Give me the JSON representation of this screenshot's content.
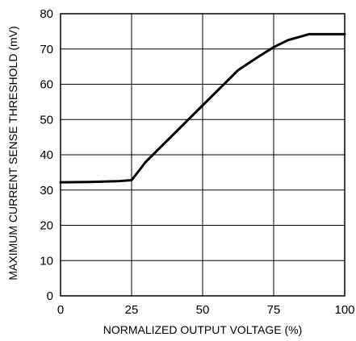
{
  "chart_data": {
    "type": "line",
    "title": "",
    "xlabel": "NORMALIZED OUTPUT VOLTAGE (%)",
    "ylabel": "MAXIMUM CURRENT SENSE THRESHOLD (mV)",
    "xlim": [
      0,
      100
    ],
    "ylim": [
      0,
      80
    ],
    "xticks": [
      "0",
      "25",
      "50",
      "75",
      "100"
    ],
    "yticks": [
      "0",
      "10",
      "20",
      "30",
      "40",
      "50",
      "60",
      "70",
      "80"
    ],
    "grid": true,
    "legend": "none",
    "series": [
      {
        "x": [
          0,
          10,
          20,
          25,
          30,
          40,
          50,
          62.5,
          70,
          75,
          80,
          87.5,
          95,
          100
        ],
        "y": [
          32.2,
          32.3,
          32.5,
          32.8,
          38,
          46,
          54,
          64,
          68,
          70.5,
          72.5,
          74.2,
          74.2,
          74.2
        ]
      }
    ],
    "colors": {
      "line": "#000000",
      "grid": "#000000",
      "background": "#ffffff"
    }
  }
}
